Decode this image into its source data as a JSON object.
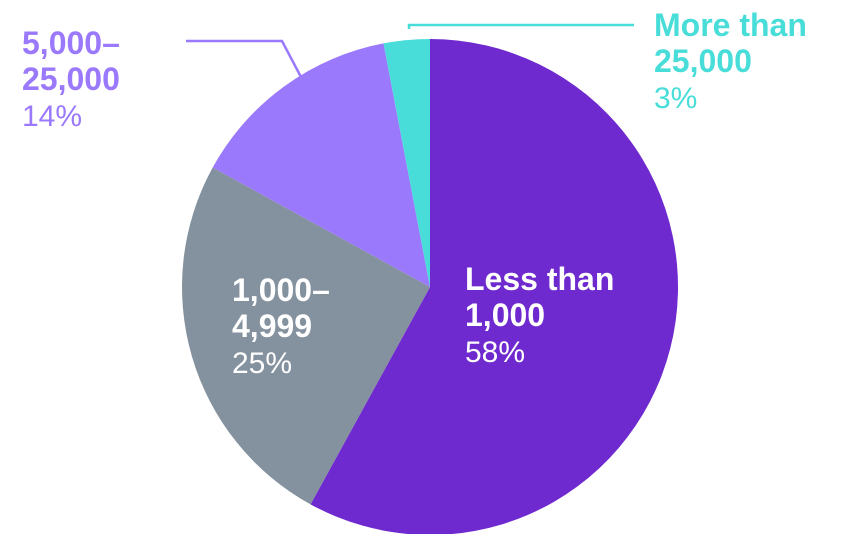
{
  "chart_data": {
    "type": "pie",
    "title": "",
    "slices": [
      {
        "label_lines": [
          "Less than",
          "1,000"
        ],
        "pct_label": "58%",
        "value": 58,
        "color": "#6e29cf",
        "label_color": "#ffffff"
      },
      {
        "label_lines": [
          "1,000–",
          "4,999"
        ],
        "pct_label": "25%",
        "value": 25,
        "color": "#84919e",
        "label_color": "#ffffff"
      },
      {
        "label_lines": [
          "5,000–",
          "25,000"
        ],
        "pct_label": "14%",
        "value": 14,
        "color": "#9b79fc",
        "label_color": "#9b79fc"
      },
      {
        "label_lines": [
          "More than",
          "25,000"
        ],
        "pct_label": "3%",
        "value": 3,
        "color": "#48ddd8",
        "label_color": "#48ddd8"
      }
    ],
    "start_angle": "12 o'clock",
    "direction": "clockwise",
    "legend": "none"
  }
}
